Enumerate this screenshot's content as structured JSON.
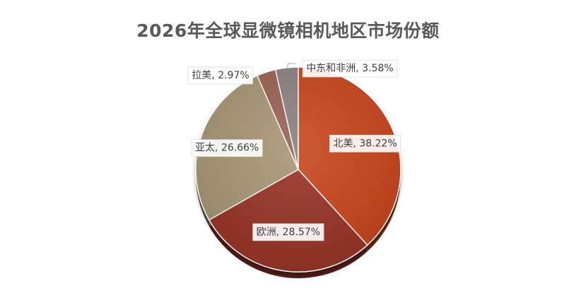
{
  "chart_data": {
    "type": "pie",
    "title": "2026年全球显微镜相机地区市场份额",
    "slices": [
      {
        "label": "北美",
        "value": 38.22,
        "text": "北美, 38.22%",
        "color": "#C9461C"
      },
      {
        "label": "欧洲",
        "value": 28.57,
        "text": "欧洲, 28.57%",
        "color": "#9A3428"
      },
      {
        "label": "亚太",
        "value": 26.66,
        "text": "亚太, 26.66%",
        "color": "#A89775"
      },
      {
        "label": "拉美",
        "value": 2.97,
        "text": "拉美, 2.97%",
        "color": "#9C6353"
      },
      {
        "label": "中东和非洲",
        "value": 3.58,
        "text": "中东和非洲, 3.58%",
        "color": "#8E8283"
      }
    ],
    "start_angle_deg": 0,
    "direction": "clockwise",
    "legend": "none",
    "labels": "outside-callout-and-inside"
  }
}
